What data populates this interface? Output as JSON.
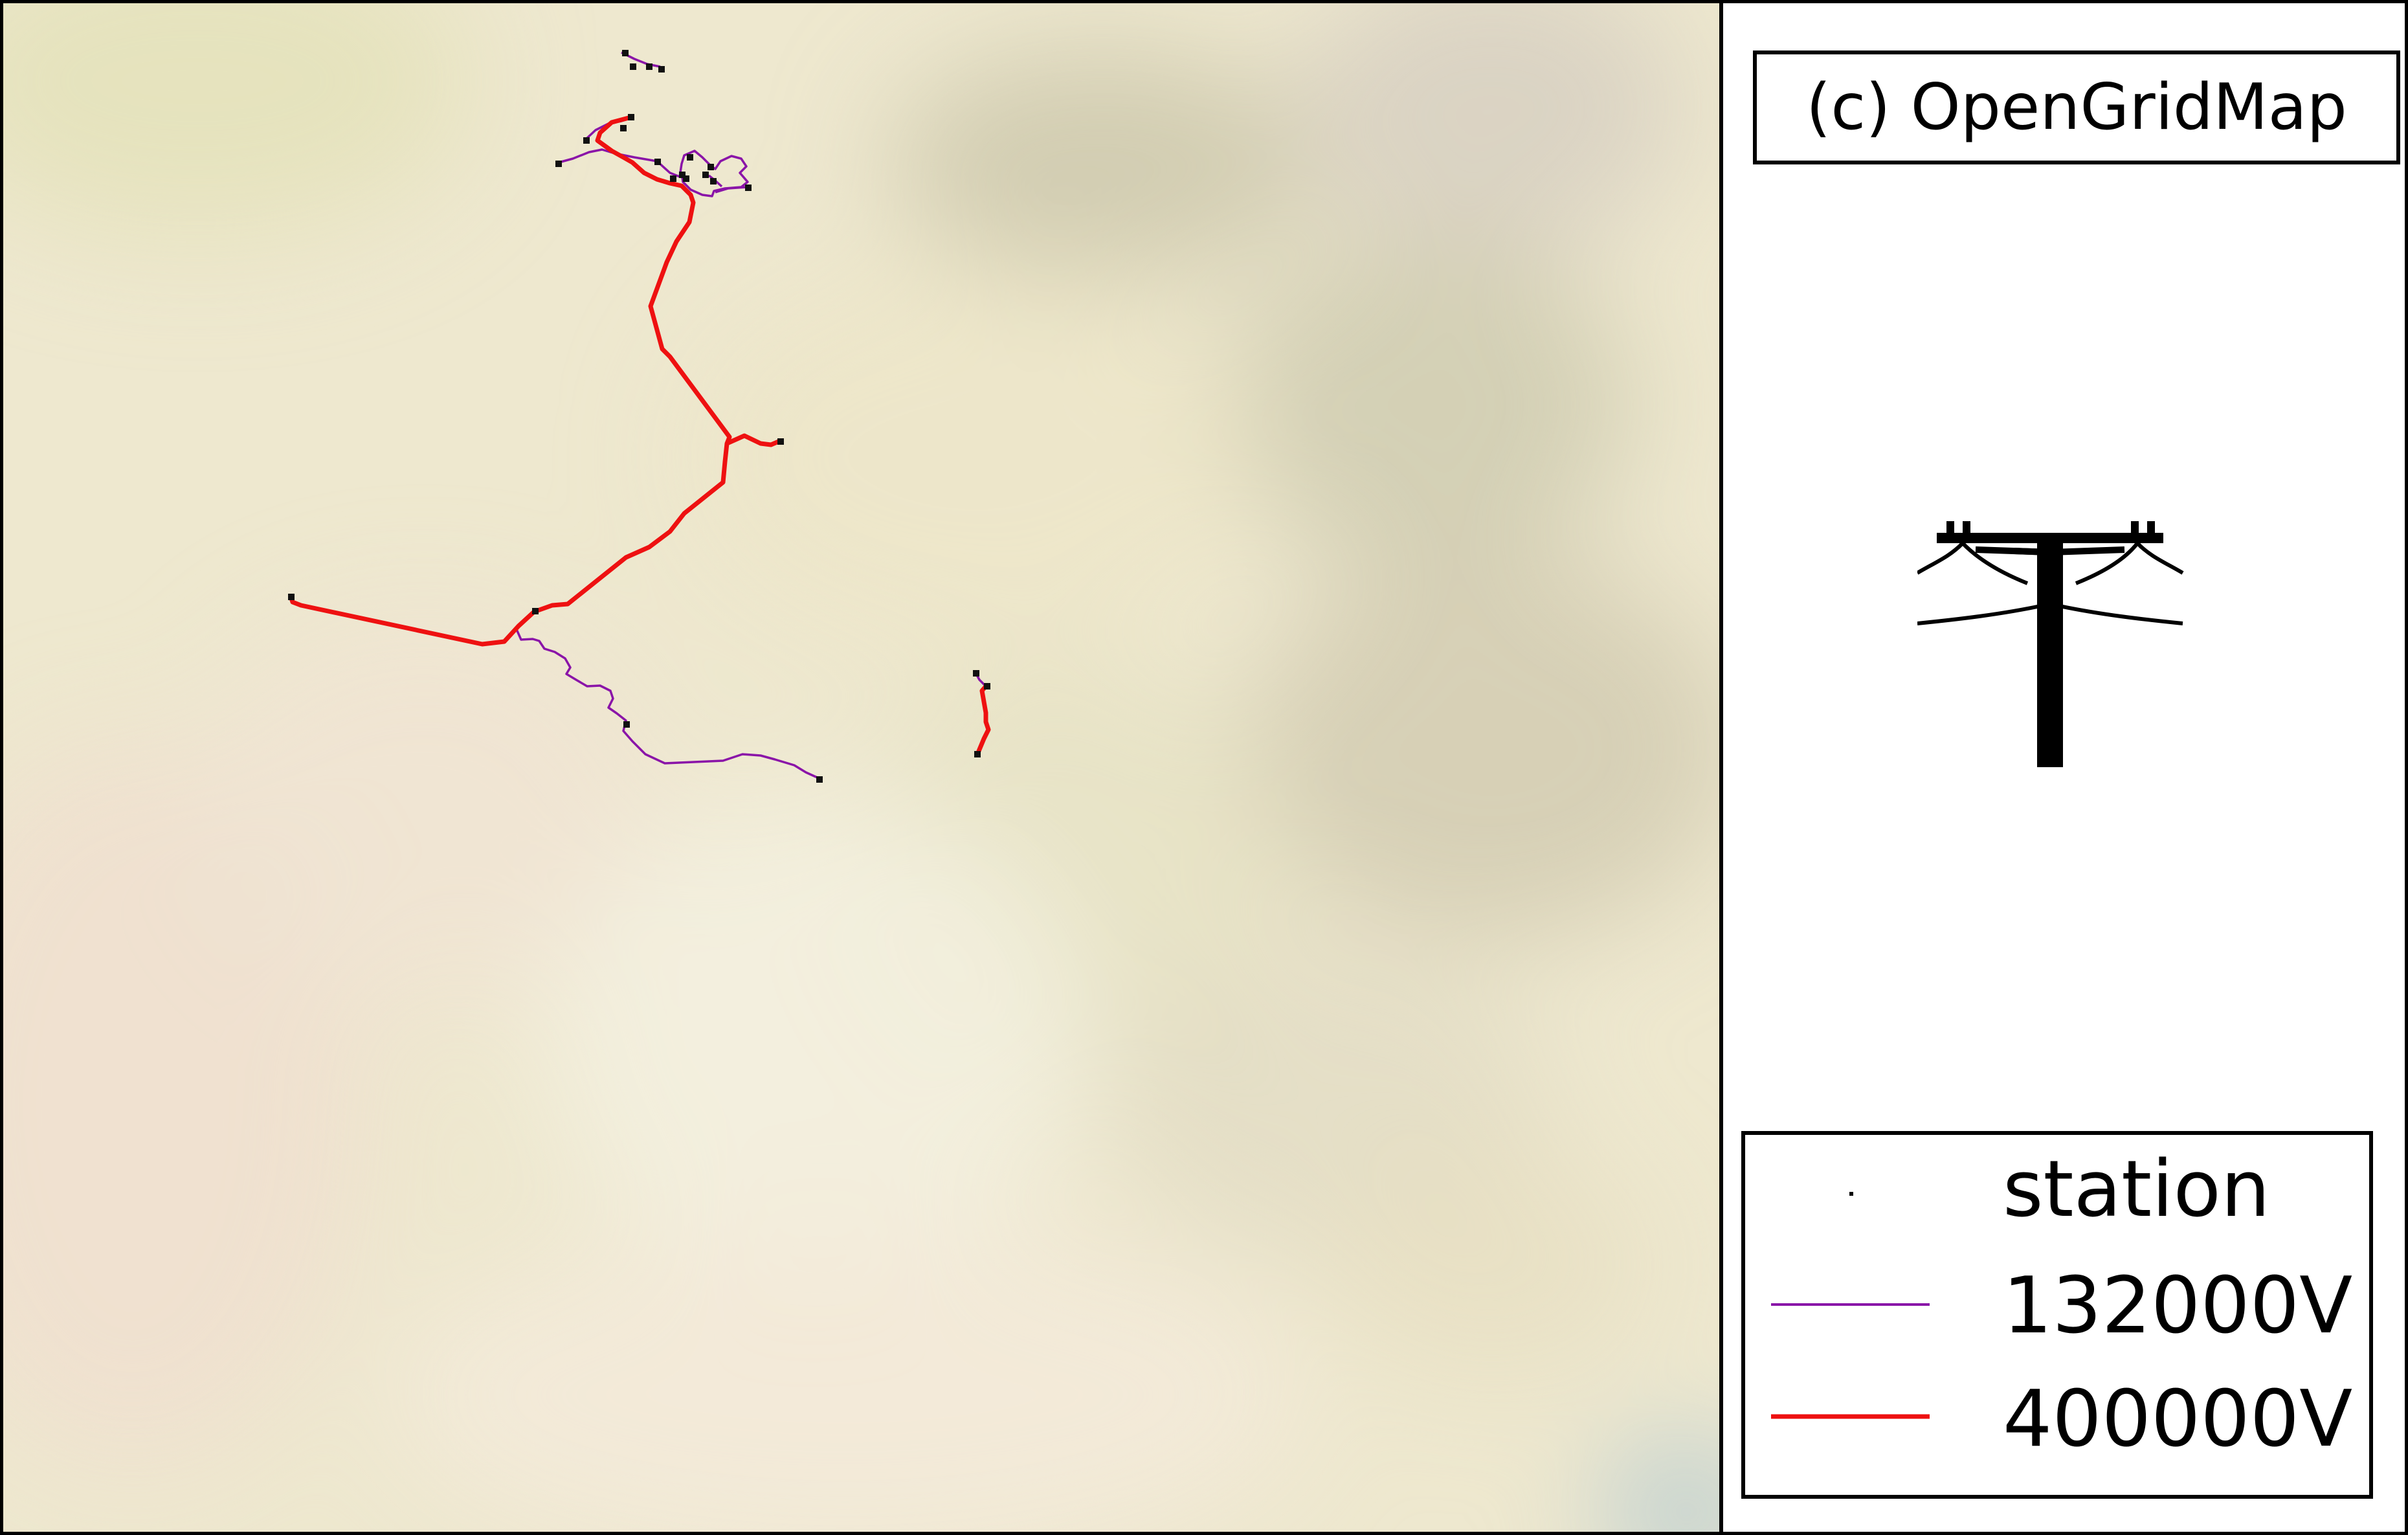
{
  "map": {
    "background": "#eee8cf",
    "line_colors": {
      "132000V": "#8a14a8",
      "400000V": "#ee1111"
    },
    "station_color": "#111111"
  },
  "attribution": {
    "text": "(c) OpenGridMap"
  },
  "icon": {
    "name": "power-pylon-icon"
  },
  "legend": {
    "items": [
      {
        "label": "station",
        "type": "marker",
        "color": "#000000"
      },
      {
        "label": "132000V",
        "type": "line",
        "color": "#8a14a8"
      },
      {
        "label": "400000V",
        "type": "line",
        "color": "#ee1111"
      }
    ]
  }
}
